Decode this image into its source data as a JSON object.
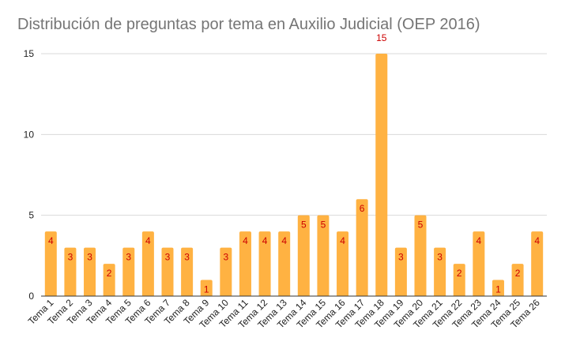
{
  "chart_data": {
    "type": "bar",
    "title": "Distribución de preguntas por tema en Auxilio Judicial (OEP 2016)",
    "xlabel": "",
    "ylabel": "",
    "ylim": [
      0,
      15
    ],
    "yticks": [
      0,
      5,
      10,
      15
    ],
    "grid": true,
    "legend": "none",
    "categories": [
      "Tema 1",
      "Tema 2",
      "Tema 3",
      "Tema 4",
      "Tema 5",
      "Tema 6",
      "Tema 7",
      "Tema 8",
      "Tema 9",
      "Tema 10",
      "Tema 11",
      "Tema 12",
      "Tema 13",
      "Tema 14",
      "Tema 15",
      "Tema 16",
      "Tema 17",
      "Tema 18",
      "Tema 19",
      "Tema 20",
      "Tema 21",
      "Tema 22",
      "Tema 23",
      "Tema 24",
      "Tema 25",
      "Tema 26"
    ],
    "values": [
      4,
      3,
      3,
      2,
      3,
      4,
      3,
      3,
      1,
      3,
      4,
      4,
      4,
      5,
      5,
      4,
      6,
      15,
      3,
      5,
      3,
      2,
      4,
      1,
      2,
      4
    ],
    "colors": {
      "bar": "#ffb242",
      "data_label": "#cc0000",
      "grid": "#d9d9d9",
      "axis": "#333333",
      "tick_label": "#222222"
    }
  }
}
